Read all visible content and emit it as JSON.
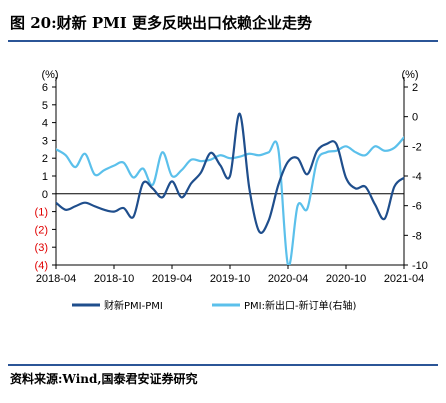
{
  "figure": {
    "title": "图 20:财新 PMI 更多反映出口依赖企业走势",
    "source": "资料来源:Wind,国泰君安证券研究"
  },
  "colors": {
    "series1": "#1f4e8c",
    "series2": "#5bc0eb",
    "negative_tick": "#e00000",
    "rule": "#2b5597"
  },
  "chart_data": {
    "type": "line",
    "left_unit": "(%)",
    "right_unit": "(%)",
    "left_ylim": [
      -4,
      6
    ],
    "right_ylim": [
      -10,
      2
    ],
    "left_ticks": [
      "6",
      "5",
      "4",
      "3",
      "2",
      "1",
      "0",
      "(1)",
      "(2)",
      "(3)",
      "(4)"
    ],
    "left_tick_values": [
      6,
      5,
      4,
      3,
      2,
      1,
      0,
      -1,
      -2,
      -3,
      -4
    ],
    "right_ticks": [
      "2",
      "0",
      "-2",
      "-4",
      "-6",
      "-8",
      "-10"
    ],
    "right_tick_values": [
      2,
      0,
      -2,
      -4,
      -6,
      -8,
      -10
    ],
    "x_ticks": [
      "2018-04",
      "2018-10",
      "2019-04",
      "2019-10",
      "2020-04",
      "2020-10",
      "2021-04"
    ],
    "x_tick_index": [
      0,
      6,
      12,
      18,
      24,
      30,
      36
    ],
    "x_range": [
      0,
      36
    ],
    "series": [
      {
        "name": "财新PMI-PMI",
        "axis": "left",
        "values": [
          -0.5,
          -0.9,
          -0.7,
          -0.5,
          -0.7,
          -0.9,
          -1.0,
          -0.8,
          -1.3,
          0.6,
          0.3,
          -0.2,
          0.7,
          -0.2,
          0.6,
          1.2,
          2.3,
          1.6,
          1.0,
          4.5,
          0.3,
          -2.1,
          -1.5,
          0.5,
          1.8,
          2.0,
          1.1,
          2.4,
          2.8,
          2.8,
          0.9,
          0.3,
          0.4,
          -0.6,
          -1.4,
          0.4,
          0.9
        ]
      },
      {
        "name": "PMI:新出口-新订单(右轴)",
        "axis": "right",
        "values": [
          -2.2,
          -2.6,
          -3.4,
          -2.5,
          -3.9,
          -3.6,
          -3.3,
          -3.1,
          -4.1,
          -3.5,
          -4.6,
          -2.4,
          -4.0,
          -3.6,
          -2.9,
          -3.0,
          -2.9,
          -2.6,
          -2.8,
          -2.7,
          -2.5,
          -2.6,
          -2.4,
          -2.2,
          -10.0,
          -6.0,
          -6.2,
          -3.0,
          -2.4,
          -2.3,
          -2.0,
          -2.4,
          -2.6,
          -2.0,
          -2.3,
          -2.1,
          -1.4
        ]
      }
    ]
  }
}
